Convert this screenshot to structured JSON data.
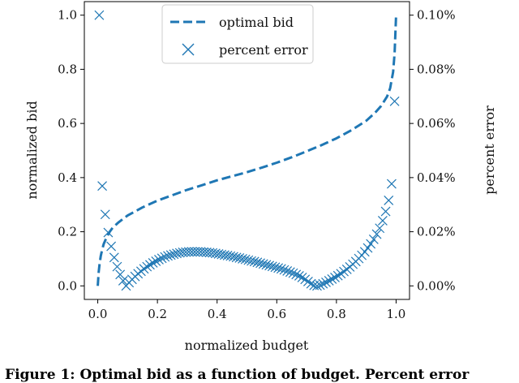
{
  "chart_data": {
    "type": "line",
    "title": "",
    "xlabel": "normalized budget",
    "ylabel": "normalized bid",
    "y2label": "percent error",
    "xlim": [
      -0.045,
      1.045
    ],
    "ylim": [
      -0.05,
      1.05
    ],
    "y2lim": [
      -0.005,
      0.105
    ],
    "x_ticks": [
      0.0,
      0.2,
      0.4,
      0.6,
      0.8,
      1.0
    ],
    "x_tick_labels": [
      "0.0",
      "0.2",
      "0.4",
      "0.6",
      "0.8",
      "1.0"
    ],
    "y_ticks": [
      0.0,
      0.2,
      0.4,
      0.6,
      0.8,
      1.0
    ],
    "y_tick_labels": [
      "0.0",
      "0.2",
      "0.4",
      "0.6",
      "0.8",
      "1.0"
    ],
    "y2_ticks": [
      0.0,
      0.02,
      0.04,
      0.06,
      0.08,
      0.1
    ],
    "y2_tick_labels": [
      "0.00%",
      "0.02%",
      "0.04%",
      "0.06%",
      "0.08%",
      "0.10%"
    ],
    "legend_position": "top-center",
    "color": "#1f77b4",
    "series": [
      {
        "name": "optimal bid",
        "style": "dashed-line",
        "axis": "left",
        "x": [
          0.0,
          0.003,
          0.006,
          0.01,
          0.015,
          0.02,
          0.03,
          0.04,
          0.05,
          0.07,
          0.1,
          0.15,
          0.2,
          0.25,
          0.3,
          0.35,
          0.4,
          0.45,
          0.5,
          0.55,
          0.6,
          0.65,
          0.7,
          0.75,
          0.8,
          0.85,
          0.9,
          0.93,
          0.95,
          0.97,
          0.98,
          0.99,
          0.995,
          1.0
        ],
        "y": [
          0.0,
          0.05,
          0.08,
          0.11,
          0.135,
          0.155,
          0.18,
          0.2,
          0.215,
          0.235,
          0.26,
          0.29,
          0.315,
          0.335,
          0.355,
          0.372,
          0.39,
          0.405,
          0.42,
          0.437,
          0.455,
          0.475,
          0.497,
          0.52,
          0.545,
          0.575,
          0.61,
          0.64,
          0.665,
          0.7,
          0.73,
          0.79,
          0.86,
          1.0
        ]
      },
      {
        "name": "percent error",
        "style": "x-markers",
        "axis": "right",
        "x": [
          0.005,
          0.015,
          0.025,
          0.035,
          0.045,
          0.055,
          0.065,
          0.075,
          0.085,
          0.095,
          0.105,
          0.115,
          0.125,
          0.135,
          0.145,
          0.155,
          0.165,
          0.175,
          0.185,
          0.195,
          0.205,
          0.215,
          0.225,
          0.235,
          0.245,
          0.255,
          0.265,
          0.275,
          0.285,
          0.295,
          0.305,
          0.315,
          0.325,
          0.335,
          0.345,
          0.355,
          0.365,
          0.375,
          0.385,
          0.395,
          0.405,
          0.415,
          0.425,
          0.435,
          0.445,
          0.455,
          0.465,
          0.475,
          0.485,
          0.495,
          0.505,
          0.515,
          0.525,
          0.535,
          0.545,
          0.555,
          0.565,
          0.575,
          0.585,
          0.595,
          0.605,
          0.615,
          0.625,
          0.635,
          0.645,
          0.655,
          0.665,
          0.675,
          0.685,
          0.695,
          0.705,
          0.715,
          0.725,
          0.735,
          0.745,
          0.755,
          0.765,
          0.775,
          0.785,
          0.795,
          0.805,
          0.815,
          0.825,
          0.835,
          0.845,
          0.855,
          0.865,
          0.875,
          0.885,
          0.895,
          0.905,
          0.915,
          0.925,
          0.935,
          0.945,
          0.955,
          0.965,
          0.975,
          0.985,
          0.995
        ],
        "y": [
          0.1,
          0.0369,
          0.0264,
          0.0197,
          0.0146,
          0.0105,
          0.0071,
          0.0042,
          0.0019,
          0.0,
          0.0012,
          0.0024,
          0.0035,
          0.0045,
          0.0054,
          0.0063,
          0.0071,
          0.0078,
          0.0085,
          0.0091,
          0.0097,
          0.0102,
          0.0107,
          0.0111,
          0.0114,
          0.0117,
          0.012,
          0.0122,
          0.0124,
          0.0125,
          0.0126,
          0.0126,
          0.0126,
          0.0126,
          0.0126,
          0.0125,
          0.0124,
          0.0123,
          0.0122,
          0.012,
          0.0118,
          0.0116,
          0.0114,
          0.0112,
          0.011,
          0.0108,
          0.0105,
          0.0103,
          0.01,
          0.0098,
          0.0095,
          0.0092,
          0.009,
          0.0087,
          0.0084,
          0.0081,
          0.0078,
          0.0075,
          0.0072,
          0.0069,
          0.0066,
          0.0063,
          0.0059,
          0.0055,
          0.0051,
          0.0047,
          0.0042,
          0.0037,
          0.0031,
          0.0024,
          0.0016,
          0.0008,
          0.0002,
          0.0,
          0.0003,
          0.0008,
          0.0013,
          0.0019,
          0.0025,
          0.0031,
          0.0038,
          0.0045,
          0.0053,
          0.0061,
          0.007,
          0.008,
          0.009,
          0.0101,
          0.0113,
          0.0126,
          0.014,
          0.0155,
          0.0172,
          0.0191,
          0.0213,
          0.0241,
          0.0275,
          0.0316,
          0.0377,
          0.0682
        ]
      }
    ]
  },
  "figure": {
    "caption": "Figure 1: Optimal bid as a function of budget. Percent error"
  }
}
